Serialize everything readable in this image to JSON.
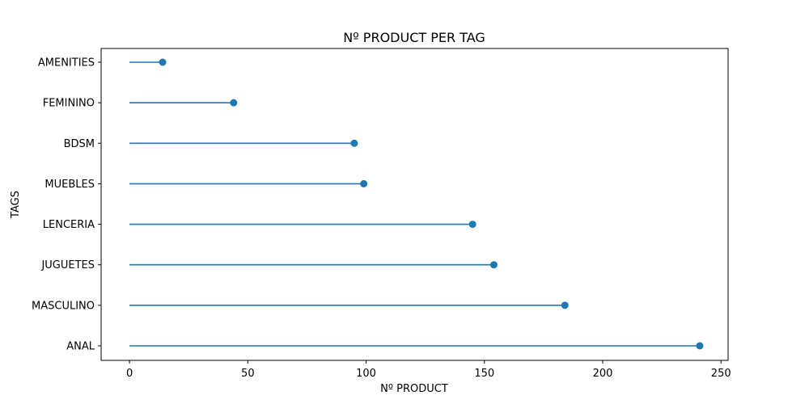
{
  "chart_data": {
    "type": "lollipop",
    "orientation": "horizontal",
    "title": "Nº PRODUCT PER TAG",
    "xlabel": "Nº PRODUCT",
    "ylabel": "TAGS",
    "categories": [
      "ANAL",
      "MASCULINO",
      "JUGUETES",
      "LENCERIA",
      "MUEBLES",
      "BDSM",
      "FEMININO",
      "AMENITIES"
    ],
    "values": [
      241,
      184,
      154,
      145,
      99,
      95,
      44,
      14
    ],
    "xlim": [
      -12,
      253
    ],
    "xticks": [
      0,
      50,
      100,
      150,
      200,
      250
    ],
    "grid": false,
    "color": "#1f77b4"
  }
}
